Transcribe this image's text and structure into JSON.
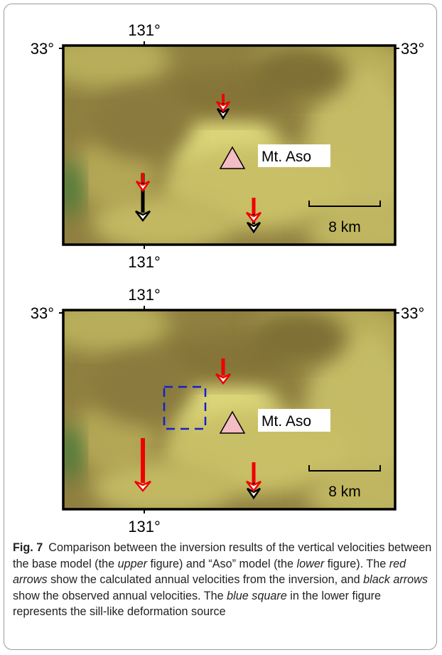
{
  "panels": [
    {
      "top_lon": "131°",
      "bottom_lon": "131°",
      "left_lat": "33°",
      "right_lat": "33°",
      "label": "Mt. Aso",
      "scale": "8 km"
    },
    {
      "top_lon": "131°",
      "bottom_lon": "131°",
      "left_lat": "33°",
      "right_lat": "33°",
      "label": "Mt. Aso",
      "scale": "8 km"
    }
  ],
  "caption": {
    "label": "Fig. 7",
    "parts": [
      "Comparison between the inversion results of the vertical velocities between the base model (the ",
      "upper",
      " figure) and “Aso” model (the ",
      "lower",
      " figure). The ",
      "red arrows",
      " show the calculated annual velocities from the inversion, and ",
      "black arrows",
      " show the observed annual velocities. The ",
      "blue square",
      " in the lower figure represents the sill-like deformation source"
    ]
  }
}
